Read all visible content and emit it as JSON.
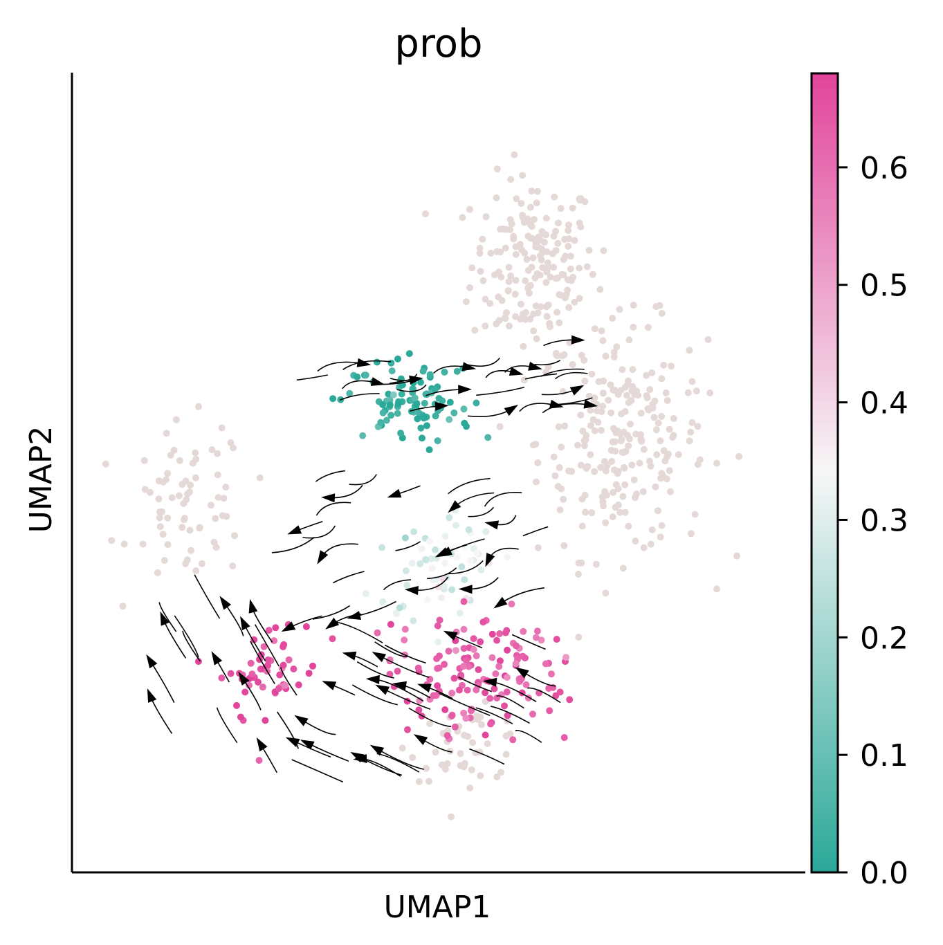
{
  "chart_data": {
    "type": "scatter",
    "title": "prob",
    "xlabel": "UMAP1",
    "ylabel": "UMAP2",
    "xlim": [
      0,
      10
    ],
    "ylim": [
      0,
      10
    ],
    "grid": false,
    "legend": "none",
    "colorbar": {
      "label": "",
      "range": [
        0.0,
        0.68
      ],
      "ticks": [
        0.0,
        0.1,
        0.2,
        0.3,
        0.4,
        0.5,
        0.6
      ],
      "tick_labels": [
        "0.0",
        "0.1",
        "0.2",
        "0.3",
        "0.4",
        "0.5",
        "0.6"
      ],
      "colors": {
        "low": "#2aa898",
        "mid": "#f7f7f7",
        "high": "#e2449b",
        "mid_value": 0.34
      }
    },
    "colors": {
      "background_cells": "#e4d9d6",
      "streamlines": "#000000"
    },
    "clusters": [
      {
        "cx": 6.3,
        "cy": 7.6,
        "sx": 0.85,
        "sy": 1.1,
        "n": 180,
        "prob": 0.0,
        "na": true
      },
      {
        "cx": 7.5,
        "cy": 5.4,
        "sx": 1.15,
        "sy": 1.45,
        "n": 230,
        "prob": 0.0,
        "na": true
      },
      {
        "cx": 1.6,
        "cy": 4.6,
        "sx": 0.8,
        "sy": 1.0,
        "n": 70,
        "prob": 0.0,
        "na": true
      },
      {
        "cx": 5.4,
        "cy": 1.6,
        "sx": 0.8,
        "sy": 0.45,
        "n": 45,
        "prob": 0.0,
        "na": true
      },
      {
        "cx": 4.6,
        "cy": 5.9,
        "sx": 0.9,
        "sy": 0.55,
        "n": 95,
        "prob": 0.02,
        "na": false
      },
      {
        "cx": 5.0,
        "cy": 3.9,
        "sx": 0.8,
        "sy": 0.7,
        "n": 60,
        "prob": 0.3,
        "na": false
      },
      {
        "cx": 5.5,
        "cy": 2.5,
        "sx": 1.2,
        "sy": 0.75,
        "n": 140,
        "prob": 0.62,
        "na": false
      },
      {
        "cx": 2.7,
        "cy": 2.5,
        "sx": 0.65,
        "sy": 0.7,
        "n": 55,
        "prob": 0.65,
        "na": false
      }
    ]
  }
}
